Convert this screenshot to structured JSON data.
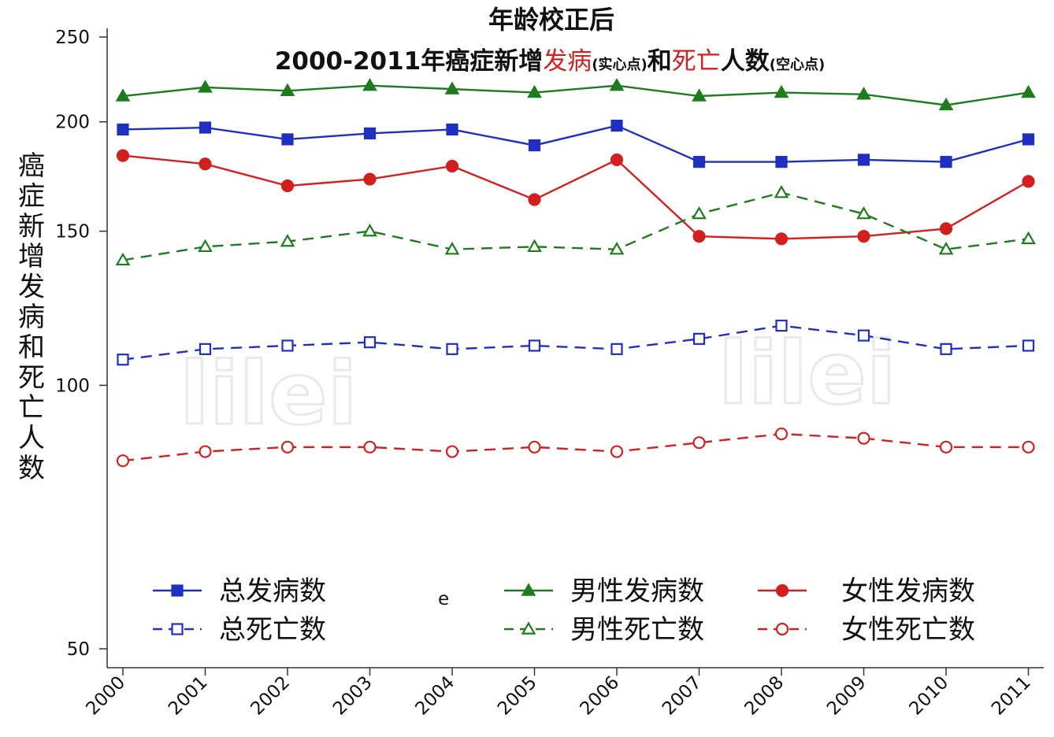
{
  "chart_data": {
    "type": "line",
    "title": "年龄校正后",
    "subtitle": {
      "part1": "2000-2011年癌症新增",
      "part2": "发病",
      "part3": "(实心点)",
      "part4": "和",
      "part5": "死亡",
      "part6": "人数",
      "part7": "(空心点)"
    },
    "ylabel_chars": [
      "癌",
      "症",
      "新",
      "增",
      "发",
      "病",
      "和",
      "死",
      "亡",
      "人",
      "数"
    ],
    "y_scale": "log",
    "ylim": [
      48,
      250
    ],
    "yticks": [
      "250",
      "200",
      "150",
      "100",
      "50"
    ],
    "x": [
      "2000",
      "2001",
      "2002",
      "2003",
      "2004",
      "2005",
      "2006",
      "2007",
      "2008",
      "2009",
      "2010",
      "2011"
    ],
    "series": [
      {
        "name": "总发病数",
        "color": "#1f2fbf",
        "marker": "square",
        "filled": true,
        "dashed": false,
        "values": [
          196,
          197,
          191,
          194,
          196,
          188,
          198,
          180,
          180,
          181,
          180,
          191
        ]
      },
      {
        "name": "男性发病数",
        "color": "#1e7b1e",
        "marker": "triangle",
        "filled": true,
        "dashed": false,
        "values": [
          214,
          219,
          217,
          220,
          218,
          216,
          220,
          214,
          216,
          215,
          209,
          216
        ]
      },
      {
        "name": "女性发病数",
        "color": "#d21f1f",
        "marker": "circle",
        "filled": true,
        "dashed": false,
        "values": [
          183,
          179,
          169,
          172,
          178,
          163,
          181,
          148,
          147,
          148,
          151,
          171
        ]
      },
      {
        "name": "总死亡数",
        "color": "#1f2fbf",
        "marker": "square",
        "filled": false,
        "dashed": true,
        "values": [
          107,
          110,
          111,
          112,
          110,
          111,
          110,
          113,
          117,
          114,
          110,
          111
        ]
      },
      {
        "name": "男性死亡数",
        "color": "#1e7b1e",
        "marker": "triangle",
        "filled": false,
        "dashed": true,
        "values": [
          139,
          144,
          146,
          150,
          143,
          144,
          143,
          157,
          166,
          157,
          143,
          147
        ]
      },
      {
        "name": "女性死亡数",
        "color": "#d21f1f",
        "marker": "circle",
        "filled": false,
        "dashed": true,
        "values": [
          82,
          84,
          85,
          85,
          84,
          85,
          84,
          86,
          88,
          87,
          85,
          85
        ]
      }
    ],
    "legend_order": [
      0,
      1,
      2,
      3,
      4,
      5
    ],
    "legend_stray_char": "e",
    "watermark": "lilei",
    "grid": false
  }
}
